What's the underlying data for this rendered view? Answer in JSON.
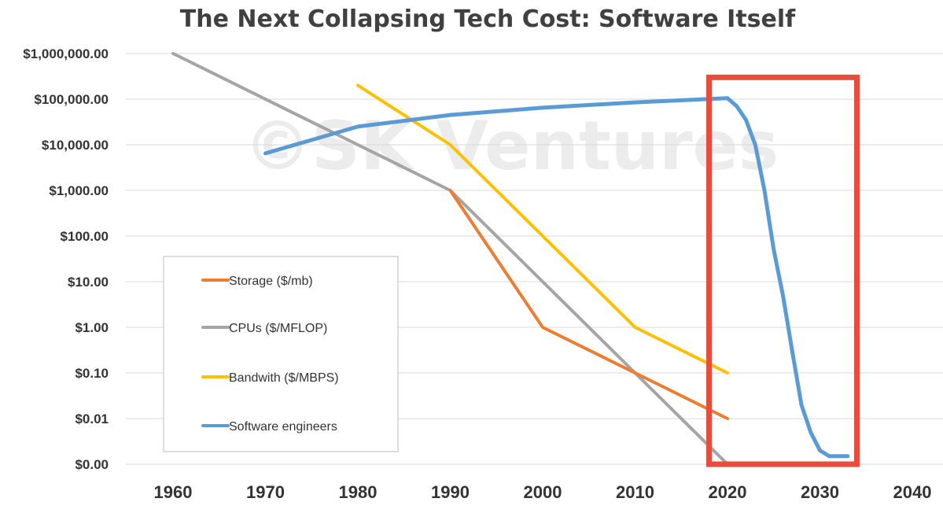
{
  "chart_data": {
    "type": "line",
    "title": "The Next Collapsing Tech Cost: Software Itself",
    "watermark": "©SK Ventures",
    "xlabel": "",
    "ylabel": "",
    "y_scale": "log",
    "xlim": [
      1960,
      2040
    ],
    "ylim": [
      0.001,
      1000000
    ],
    "x_ticks": [
      "1960",
      "1970",
      "1980",
      "1990",
      "2000",
      "2010",
      "2020",
      "2030",
      "2040"
    ],
    "y_ticks": [
      {
        "value": 1000000,
        "label": "$1,000,000.00"
      },
      {
        "value": 100000,
        "label": "$100,000.00"
      },
      {
        "value": 10000,
        "label": "$10,000.00"
      },
      {
        "value": 1000,
        "label": "$1,000.00"
      },
      {
        "value": 100,
        "label": "$100.00"
      },
      {
        "value": 10,
        "label": "$10.00"
      },
      {
        "value": 1,
        "label": "$1.00"
      },
      {
        "value": 0.1,
        "label": "$0.10"
      },
      {
        "value": 0.01,
        "label": "$0.01"
      },
      {
        "value": 0.001,
        "label": "$0.00"
      }
    ],
    "grid": "horizontal",
    "legend_position": "lower-left",
    "series": [
      {
        "name": "Storage ($/mb)",
        "color": "#ed7d31",
        "points": [
          [
            1990,
            1000
          ],
          [
            2000,
            1
          ],
          [
            2010,
            0.1
          ],
          [
            2020,
            0.01
          ]
        ]
      },
      {
        "name": "CPUs ($/MFLOP)",
        "color": "#a5a5a5",
        "points": [
          [
            1960,
            1000000
          ],
          [
            1980,
            10000
          ],
          [
            1990,
            1000
          ],
          [
            2000,
            10
          ],
          [
            2010,
            0.1
          ],
          [
            2020,
            0.001
          ]
        ]
      },
      {
        "name": "Bandwith ($/MBPS)",
        "color": "#ffc000",
        "points": [
          [
            1980,
            200000
          ],
          [
            1990,
            10000
          ],
          [
            2000,
            100
          ],
          [
            2010,
            1
          ],
          [
            2020,
            0.1
          ]
        ]
      },
      {
        "name": "Software engineers",
        "color": "#5b9bd5",
        "points": [
          [
            1970,
            6500
          ],
          [
            1980,
            25000
          ],
          [
            1990,
            45000
          ],
          [
            2000,
            65000
          ],
          [
            2010,
            85000
          ],
          [
            2020,
            105000
          ],
          [
            2021,
            70000
          ],
          [
            2022,
            35000
          ],
          [
            2023,
            10000
          ],
          [
            2024,
            1000
          ],
          [
            2025,
            50
          ],
          [
            2026,
            5
          ],
          [
            2027,
            0.3
          ],
          [
            2028,
            0.02
          ],
          [
            2029,
            0.005
          ],
          [
            2030,
            0.002
          ],
          [
            2031,
            0.0015
          ],
          [
            2032,
            0.0015
          ],
          [
            2033,
            0.0015
          ]
        ]
      }
    ],
    "highlight_box": {
      "x_range": [
        2018,
        2034
      ],
      "y_range": [
        0.001,
        300000
      ],
      "color": "#e84c3d"
    }
  }
}
